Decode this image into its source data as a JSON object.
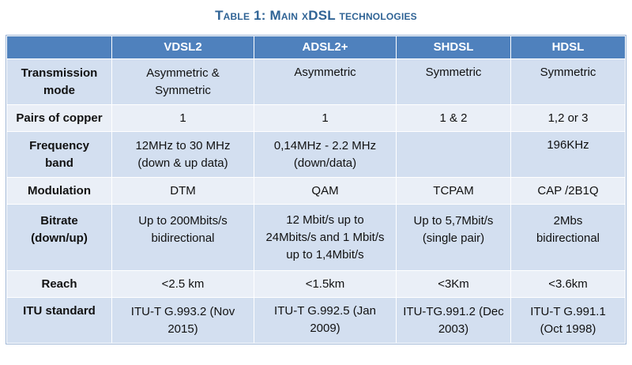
{
  "caption": "Table 1: Main xDSL technologies",
  "table": {
    "header": [
      "",
      "VDSL2",
      "ADSL2+",
      "SHDSL",
      "HDSL"
    ],
    "rows": [
      {
        "label": [
          "Transmission",
          "mode"
        ],
        "cells": [
          [
            "Asymmetric &",
            "Symmetric"
          ],
          [
            "Asymmetric"
          ],
          [
            "Symmetric"
          ],
          [
            "Symmetric"
          ]
        ]
      },
      {
        "label": [
          "Pairs of copper"
        ],
        "cells": [
          [
            "1"
          ],
          [
            "1"
          ],
          [
            "1 & 2"
          ],
          [
            "1,2 or 3"
          ]
        ]
      },
      {
        "label": [
          "Frequency",
          "band"
        ],
        "cells": [
          [
            "12MHz to 30 MHz",
            "(down & up data)"
          ],
          [
            "0,14MHz - 2.2 MHz",
            "(down/data)"
          ],
          [
            ""
          ],
          [
            "196KHz"
          ]
        ]
      },
      {
        "label": [
          "Modulation"
        ],
        "cells": [
          [
            "DTM"
          ],
          [
            "QAM"
          ],
          [
            "TCPAM"
          ],
          [
            "CAP /2B1Q"
          ]
        ]
      },
      {
        "label": [
          "Bitrate",
          "(down/up)"
        ],
        "cells": [
          [
            "Up to 200Mbits/s",
            "bidirectional"
          ],
          [
            "12 Mbit/s up to",
            "24Mbits/s and 1 Mbit/s",
            "up to 1,4Mbit/s"
          ],
          [
            "Up to 5,7Mbit/s",
            "(single pair)"
          ],
          [
            "2Mbs",
            "bidirectional"
          ]
        ]
      },
      {
        "label": [
          "Reach"
        ],
        "cells": [
          [
            "<2.5 km"
          ],
          [
            "<1.5km"
          ],
          [
            "<3Km"
          ],
          [
            "<3.6km"
          ]
        ]
      },
      {
        "label": [
          "ITU standard"
        ],
        "cells": [
          [
            "ITU-T G.993.2 (Nov",
            "2015)"
          ],
          [
            "ITU-T G.992.5 (Jan 2009)"
          ],
          [
            "ITU-TG.991.2 (Dec",
            "2003)"
          ],
          [
            "ITU-T G.991.1",
            "(Oct 1998)"
          ]
        ]
      }
    ]
  }
}
